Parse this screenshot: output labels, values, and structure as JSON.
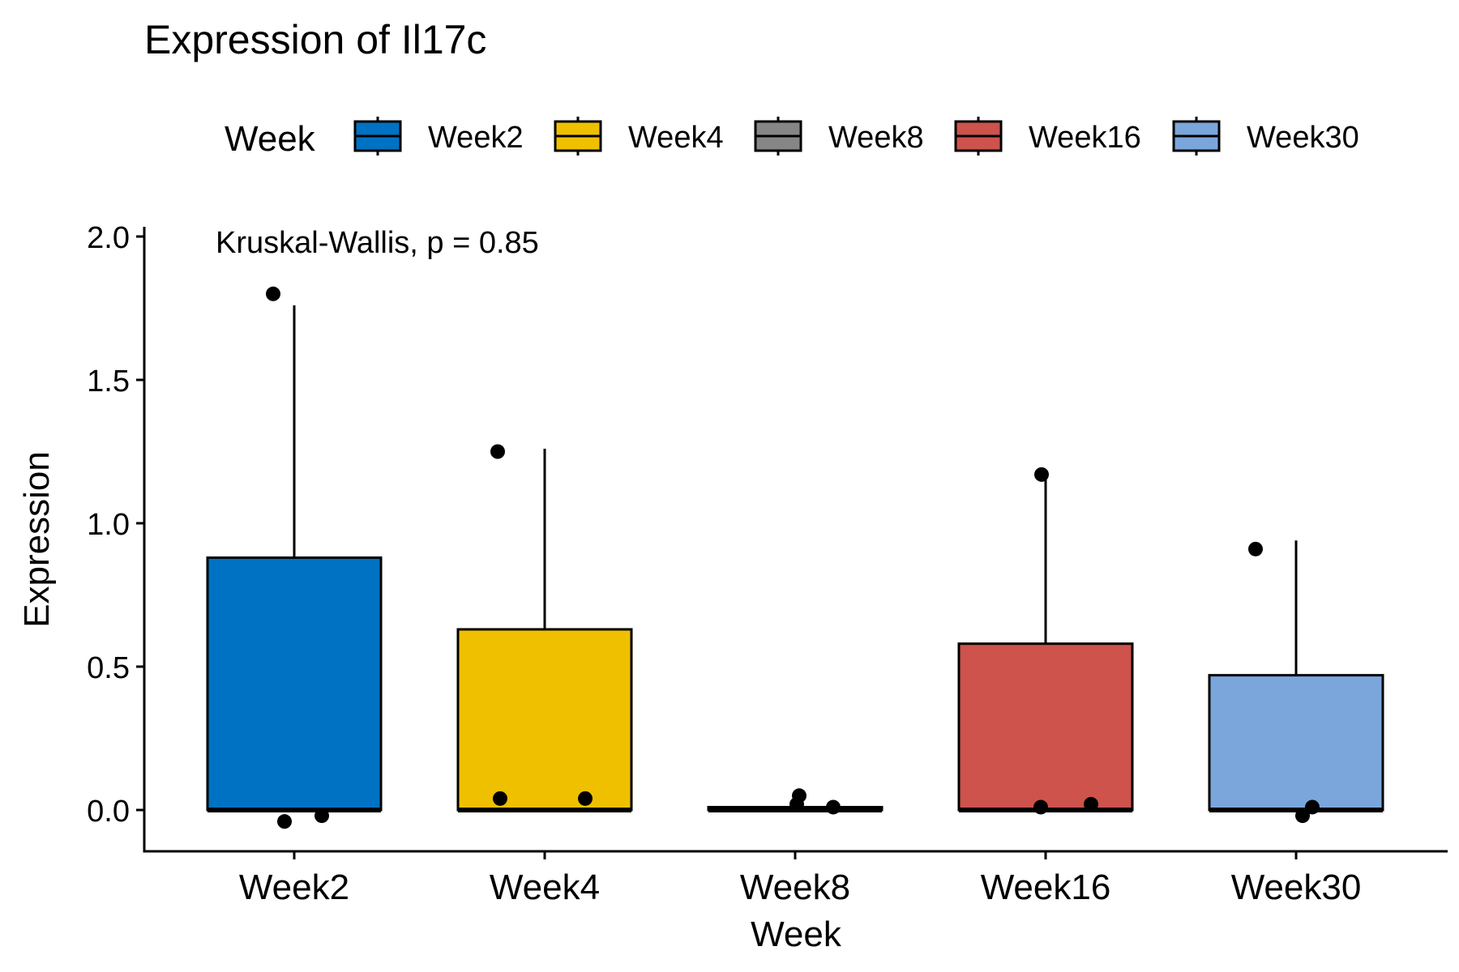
{
  "chart_data": {
    "type": "box",
    "title": "Expression of Il17c",
    "xlabel": "Week",
    "ylabel": "Expression",
    "ylim": [
      -0.14,
      2.03
    ],
    "yticks": [
      "0.0",
      "0.5",
      "1.0",
      "1.5",
      "2.0"
    ],
    "yticks_values": [
      0,
      0.5,
      1.0,
      1.5,
      2.0
    ],
    "annotation": "Kruskal-Wallis, p = 0.85",
    "legend": {
      "title": "Week",
      "position": "top"
    },
    "grid": false,
    "categories": [
      "Week2",
      "Week4",
      "Week8",
      "Week16",
      "Week30"
    ],
    "colors": [
      "#0072C3",
      "#EFC000",
      "#868686",
      "#CD534C",
      "#7AA6DC"
    ],
    "boxes": [
      {
        "name": "Week2",
        "lower_whisker": 0,
        "q1": 0,
        "median": 0,
        "q3": 0.88,
        "upper_whisker": 1.76
      },
      {
        "name": "Week4",
        "lower_whisker": 0,
        "q1": 0,
        "median": 0,
        "q3": 0.63,
        "upper_whisker": 1.26
      },
      {
        "name": "Week8",
        "lower_whisker": 0,
        "q1": 0,
        "median": 0,
        "q3": 0.01,
        "upper_whisker": 0.01
      },
      {
        "name": "Week16",
        "lower_whisker": 0,
        "q1": 0,
        "median": 0,
        "q3": 0.58,
        "upper_whisker": 1.16
      },
      {
        "name": "Week30",
        "lower_whisker": 0,
        "q1": 0,
        "median": 0,
        "q3": 0.47,
        "upper_whisker": 0.94
      }
    ],
    "points": [
      {
        "group": "Week2",
        "values": [
          1.8,
          -0.04,
          -0.02
        ]
      },
      {
        "group": "Week4",
        "values": [
          1.25,
          0.04,
          0.04
        ]
      },
      {
        "group": "Week8",
        "values": [
          0.05,
          0.02,
          0.01
        ]
      },
      {
        "group": "Week16",
        "values": [
          1.17,
          0.01,
          0.02
        ]
      },
      {
        "group": "Week30",
        "values": [
          0.91,
          -0.02,
          0.01
        ]
      }
    ]
  }
}
